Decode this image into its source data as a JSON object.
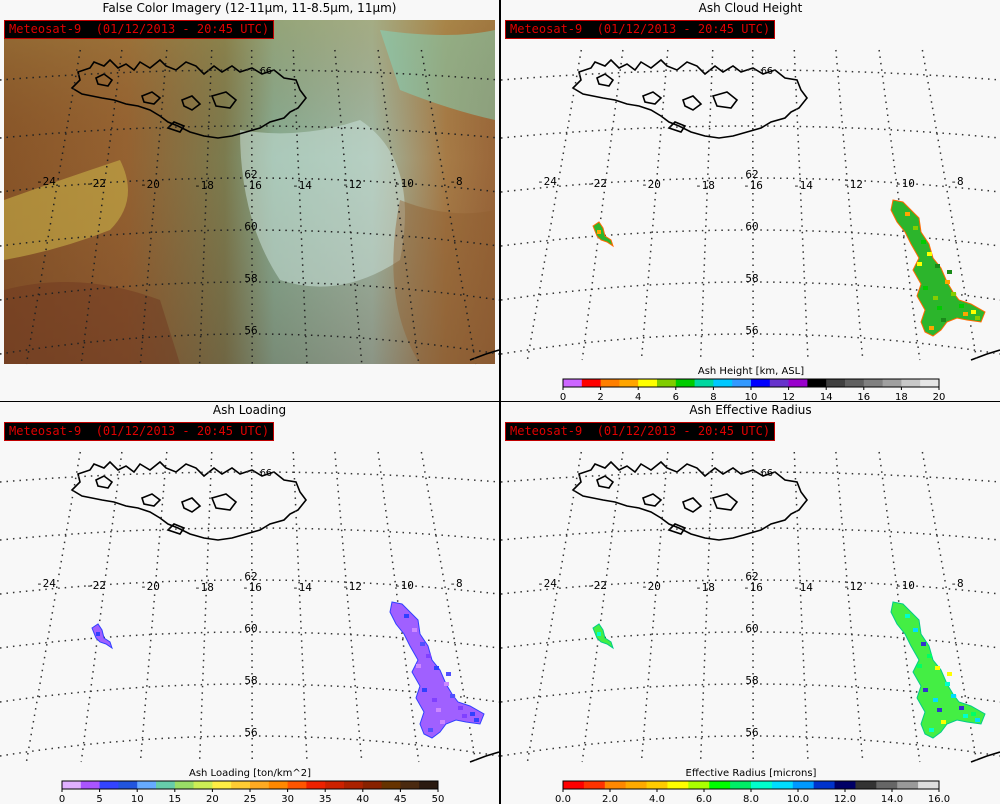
{
  "badge": "Meteosat-9  (01/12/2013 - 20:45 UTC)",
  "panels": [
    {
      "title": "False Color Imagery (12-11μm, 11-8.5μm, 11μm)"
    },
    {
      "title": "Ash Cloud Height",
      "colorbar": {
        "label": "Ash Height [km, ASL]",
        "ticks": [
          "0",
          "2",
          "4",
          "6",
          "8",
          "10",
          "12",
          "14",
          "16",
          "18",
          "20"
        ]
      }
    },
    {
      "title": "Ash Loading",
      "colorbar": {
        "label": "Ash Loading [ton/km^2]",
        "ticks": [
          "0",
          "5",
          "10",
          "15",
          "20",
          "25",
          "30",
          "35",
          "40",
          "45",
          "50"
        ]
      }
    },
    {
      "title": "Ash Effective Radius",
      "colorbar": {
        "label": "Effective Radius [microns]",
        "ticks": [
          "0.0",
          "2.0",
          "4.0",
          "6.0",
          "8.0",
          "10.0",
          "12.0",
          "14.0",
          "16.0"
        ]
      }
    }
  ],
  "grid": {
    "lon_labels": [
      "-24",
      "-22",
      "-20",
      "-18",
      "-16",
      "-14",
      "-12",
      "-10",
      "-8"
    ],
    "lat_labels": [
      "62",
      "60",
      "58",
      "56"
    ],
    "top_lat_label": "66"
  },
  "colors": {
    "badge_text": "#e00000",
    "height_bar": [
      "#cc66ff",
      "#ff0000",
      "#ff7f00",
      "#ffa500",
      "#ffff00",
      "#80cc00",
      "#00cc00",
      "#00d8a0",
      "#00c8ff",
      "#3399ff",
      "#0000ff",
      "#6633cc",
      "#9900cc",
      "#000000",
      "#404040",
      "#606060",
      "#808080",
      "#a0a0a0",
      "#c8c8c8",
      "#e6e6e6"
    ],
    "loading_bar": [
      "#e0b0ff",
      "#aa55ff",
      "#3344ff",
      "#2255dd",
      "#66aaff",
      "#66ccaa",
      "#99dd66",
      "#ccee55",
      "#ffee44",
      "#ffcc33",
      "#ffaa22",
      "#ff8800",
      "#ff5500",
      "#ee2200",
      "#cc2200",
      "#aa2200",
      "#882200",
      "#663300",
      "#4a2a10",
      "#2a1a10"
    ],
    "radius_bar": [
      "#ff0000",
      "#ff3300",
      "#ff8800",
      "#ffaa00",
      "#ffcc00",
      "#ffff00",
      "#aaff00",
      "#00ff00",
      "#00ee66",
      "#00ffcc",
      "#00ddff",
      "#0099ff",
      "#0033cc",
      "#000066",
      "#333333",
      "#666666",
      "#999999",
      "#dddddd"
    ]
  }
}
